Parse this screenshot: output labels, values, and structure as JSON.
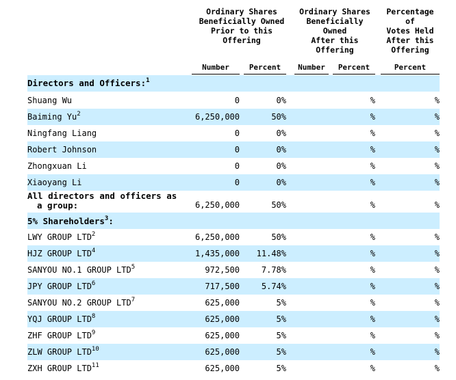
{
  "headers": {
    "prior": [
      "Ordinary Shares",
      "Beneficially Owned",
      "Prior to this",
      "Offering"
    ],
    "after": [
      "Ordinary Shares",
      "Beneficially",
      "Owned",
      "After this",
      "Offering"
    ],
    "votes": [
      "Percentage",
      "of",
      "Votes Held",
      "After this",
      "Offering"
    ],
    "sub_number": "Number",
    "sub_percent": "Percent",
    "sub_number_after": "Number",
    "sub_percent_after": "Percent",
    "sub_percent_votes": "Percent"
  },
  "sections": {
    "directors": {
      "label": "Directors and Officers:",
      "sup": "1"
    },
    "holders": {
      "label": "5% Shareholders",
      "sup": "3",
      "suffix": ":"
    }
  },
  "directors": [
    {
      "name": "Shuang Wu",
      "sup": "",
      "number": "0",
      "percent": "0%",
      "after": "%",
      "votes": "%"
    },
    {
      "name": "Baiming Yu",
      "sup": "2",
      "number": "6,250,000",
      "percent": "50%",
      "after": "%",
      "votes": "%"
    },
    {
      "name": "Ningfang Liang",
      "sup": "",
      "number": "0",
      "percent": "0%",
      "after": "%",
      "votes": "%"
    },
    {
      "name": "Robert Johnson",
      "sup": "",
      "number": "0",
      "percent": "0%",
      "after": "%",
      "votes": "%"
    },
    {
      "name": "Zhongxuan Li",
      "sup": "",
      "number": "0",
      "percent": "0%",
      "after": "%",
      "votes": "%"
    },
    {
      "name": "Xiaoyang Li",
      "sup": "",
      "number": "0",
      "percent": "0%",
      "after": "%",
      "votes": "%"
    }
  ],
  "group_total": {
    "line1": "All directors and officers as",
    "line2": "a group:",
    "number": "6,250,000",
    "percent": "50%",
    "after": "%",
    "votes": "%"
  },
  "holders": [
    {
      "name": "LWY GROUP LTD",
      "sup": "2",
      "number": "6,250,000",
      "percent": "50%",
      "after": "%",
      "votes": "%"
    },
    {
      "name": "HJZ GROUP LTD",
      "sup": "4",
      "number": "1,435,000",
      "percent": "11.48%",
      "after": "%",
      "votes": "%"
    },
    {
      "name": "SANYOU NO.1 GROUP LTD",
      "sup": "5",
      "number": "972,500",
      "percent": "7.78%",
      "after": "%",
      "votes": "%"
    },
    {
      "name": "JPY GROUP LTD",
      "sup": "6",
      "number": "717,500",
      "percent": "5.74%",
      "after": "%",
      "votes": "%"
    },
    {
      "name": "SANYOU NO.2 GROUP LTD",
      "sup": "7",
      "number": "625,000",
      "percent": "5%",
      "after": "%",
      "votes": "%"
    },
    {
      "name": "YQJ GROUP LTD",
      "sup": "8",
      "number": "625,000",
      "percent": "5%",
      "after": "%",
      "votes": "%"
    },
    {
      "name": "ZHF GROUP LTD",
      "sup": "9",
      "number": "625,000",
      "percent": "5%",
      "after": "%",
      "votes": "%"
    },
    {
      "name": "ZLW GROUP LTD",
      "sup": "10",
      "number": "625,000",
      "percent": "5%",
      "after": "%",
      "votes": "%"
    },
    {
      "name": "ZXH GROUP LTD",
      "sup": "11",
      "number": "625,000",
      "percent": "5%",
      "after": "%",
      "votes": "%"
    }
  ]
}
